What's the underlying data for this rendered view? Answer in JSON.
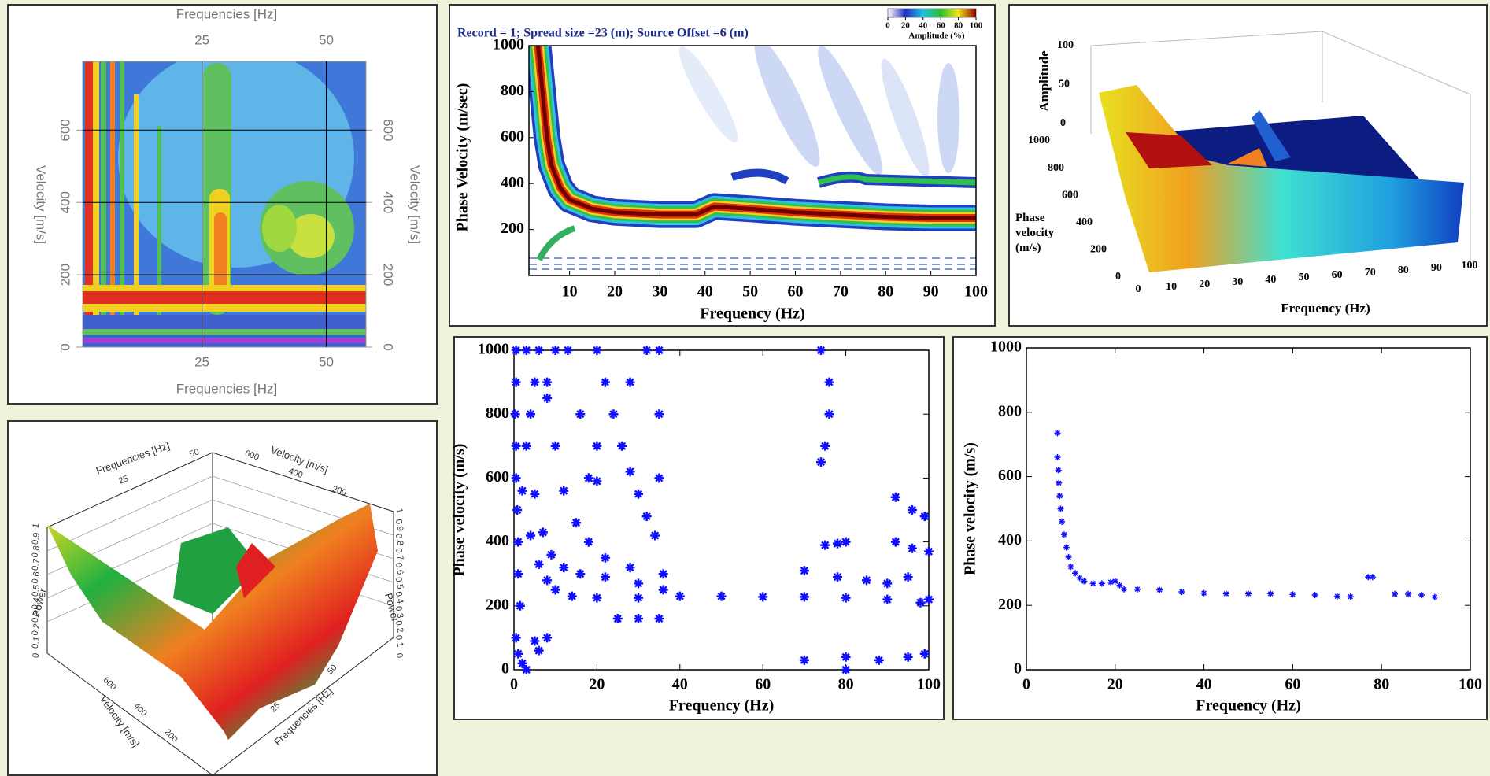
{
  "chart_data": [
    {
      "type": "contour",
      "xlabel": "Frequencies [Hz]",
      "ylabel": "Velocity [m/s]",
      "xlim": [
        1,
        58
      ],
      "ylim": [
        0,
        790
      ],
      "xticks": [
        25,
        50
      ],
      "yticks": [
        0,
        200,
        400,
        600
      ],
      "grid": true
    },
    {
      "type": "heatmap",
      "title": "Record = 1; Spread size =23 (m); Source Offset =6 (m)",
      "xlabel": "Frequency (Hz)",
      "ylabel": "Phase Velocity (m/sec)",
      "xlim": [
        1,
        100
      ],
      "ylim": [
        0,
        1000
      ],
      "xticks": [
        10,
        20,
        30,
        40,
        50,
        60,
        70,
        80,
        90,
        100
      ],
      "yticks": [
        200,
        400,
        600,
        800,
        1000
      ],
      "colorbar": {
        "label": "Amplitude (%)",
        "lim": [
          0,
          100
        ],
        "ticks": [
          0,
          20,
          40,
          60,
          80,
          100
        ]
      },
      "ridge": {
        "x": [
          3,
          4,
          5,
          6,
          8,
          10,
          15,
          20,
          30,
          38,
          42,
          50,
          60,
          70,
          80,
          90,
          100
        ],
        "values": [
          1000,
          800,
          600,
          480,
          380,
          330,
          290,
          275,
          265,
          265,
          300,
          290,
          275,
          265,
          255,
          250,
          250
        ]
      }
    },
    {
      "type": "surface",
      "xlabel": "Frequency (Hz)",
      "ylabel": "Phase velocity (m/s)",
      "zlabel": "Amplitude",
      "xticks": [
        0,
        10,
        20,
        30,
        40,
        50,
        60,
        70,
        80,
        90,
        100
      ],
      "yticks": [
        0,
        200,
        400,
        600,
        800,
        1000
      ],
      "zticks": [
        0,
        50,
        100
      ]
    },
    {
      "type": "surface",
      "xlabel": "Frequencies [Hz]",
      "ylabel": "Velocity [m/s]",
      "zlabel": "Power",
      "xticks": [
        25,
        50
      ],
      "yticks": [
        200,
        400,
        600
      ],
      "zticks": [
        0,
        0.1,
        0.2,
        0.3,
        0.4,
        0.5,
        0.6,
        0.7,
        0.8,
        0.9,
        1
      ]
    },
    {
      "type": "scatter",
      "xlabel": "Frequency (Hz)",
      "ylabel": "Phase velocity (m/s)",
      "color": "#1010ff",
      "xlim": [
        0,
        100
      ],
      "ylim": [
        0,
        1000
      ],
      "xticks": [
        0,
        20,
        40,
        60,
        80,
        100
      ],
      "yticks": [
        0,
        200,
        400,
        600,
        800,
        1000
      ],
      "x": [
        0.5,
        0.5,
        0.3,
        0.5,
        0.5,
        0.8,
        1,
        1,
        1.5,
        0.5,
        1,
        2,
        3,
        5,
        8,
        6,
        3,
        6,
        10,
        13,
        5,
        8,
        4,
        2,
        4,
        6,
        8,
        10,
        14,
        20,
        30,
        40,
        50,
        60,
        70,
        80,
        90,
        100,
        3,
        5,
        7,
        9,
        12,
        16,
        22,
        30,
        36,
        8,
        10,
        12,
        15,
        18,
        22,
        28,
        36,
        20,
        22,
        24,
        26,
        28,
        30,
        32,
        34,
        28,
        32,
        35,
        35,
        35,
        18,
        20,
        16,
        20,
        74,
        76,
        76,
        75,
        74,
        75,
        78,
        80,
        70,
        78,
        85,
        90,
        95,
        98,
        92,
        96,
        99,
        92,
        96,
        100,
        70,
        80,
        88,
        95,
        99,
        80,
        30,
        35,
        25
      ],
      "values": [
        1000,
        900,
        800,
        700,
        600,
        500,
        400,
        300,
        200,
        100,
        50,
        20,
        0,
        90,
        100,
        60,
        1000,
        1000,
        1000,
        1000,
        900,
        850,
        800,
        560,
        420,
        330,
        280,
        250,
        230,
        225,
        225,
        230,
        230,
        228,
        228,
        225,
        220,
        220,
        700,
        550,
        430,
        360,
        320,
        300,
        290,
        270,
        250,
        900,
        700,
        560,
        460,
        400,
        350,
        320,
        300,
        1000,
        900,
        800,
        700,
        620,
        550,
        480,
        420,
        900,
        1000,
        1000,
        800,
        600,
        600,
        590,
        800,
        700,
        1000,
        900,
        800,
        700,
        650,
        390,
        395,
        400,
        310,
        290,
        280,
        270,
        290,
        210,
        540,
        500,
        480,
        400,
        380,
        370,
        30,
        40,
        30,
        40,
        50,
        0,
        160,
        160,
        160
      ]
    },
    {
      "type": "scatter",
      "xlabel": "Frequency (Hz)",
      "ylabel": "Phase velocity (m/s)",
      "color": "#1010ff",
      "xlim": [
        0,
        100
      ],
      "ylim": [
        0,
        1000
      ],
      "xticks": [
        0,
        20,
        40,
        60,
        80,
        100
      ],
      "yticks": [
        0,
        200,
        400,
        600,
        800,
        1000
      ],
      "x": [
        7,
        7,
        7.2,
        7.3,
        7.5,
        7.7,
        8,
        8.5,
        9,
        9.5,
        10,
        11,
        12,
        13,
        15,
        17,
        19,
        20,
        21,
        22,
        25,
        30,
        35,
        40,
        45,
        50,
        55,
        60,
        65,
        70,
        73,
        77,
        78,
        83,
        86,
        89,
        92
      ],
      "values": [
        735,
        660,
        620,
        580,
        540,
        500,
        460,
        420,
        380,
        350,
        320,
        300,
        285,
        275,
        268,
        268,
        272,
        275,
        262,
        250,
        250,
        248,
        242,
        238,
        236,
        236,
        236,
        234,
        232,
        228,
        227,
        288,
        288,
        235,
        235,
        232,
        226
      ]
    }
  ]
}
